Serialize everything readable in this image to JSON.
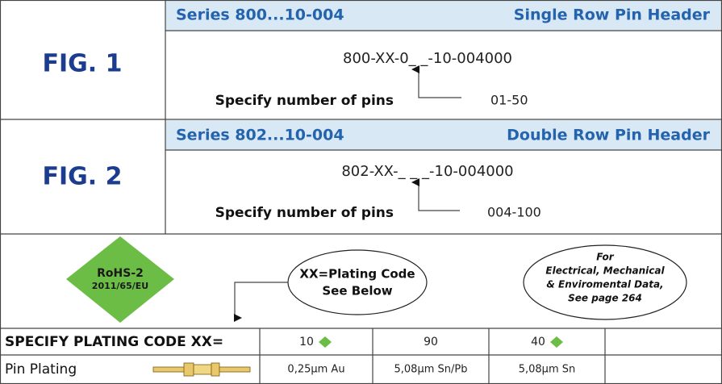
{
  "figures": [
    {
      "label": "FIG. 1",
      "series": "Series 800...10-004",
      "title": "Single Row Pin Header",
      "part_number": "800-XX-0_ _-10-004000",
      "instruction": "Specify number of pins",
      "range": "01-50"
    },
    {
      "label": "FIG. 2",
      "series": "Series 802...10-004",
      "title": "Double Row Pin Header",
      "part_number": "802-XX-_ _ _-10-004000",
      "instruction": "Specify number of pins",
      "range": "004-100"
    }
  ],
  "rohs": {
    "line1": "RoHS-2",
    "line2": "2011/65/EU"
  },
  "plating_note": [
    "XX=Plating Code",
    "See Below"
  ],
  "reference_note": [
    "For",
    "Electrical, Mechanical",
    "& Enviromental Data,",
    "See page 264"
  ],
  "table": {
    "header": {
      "label": "SPECIFY PLATING CODE XX=",
      "codes": [
        "10",
        "90",
        "40"
      ]
    },
    "row": {
      "label": "Pin Plating",
      "platings": [
        "0,25μm Au",
        "5,08μm Sn/Pb",
        "5,08μm Sn"
      ]
    }
  }
}
